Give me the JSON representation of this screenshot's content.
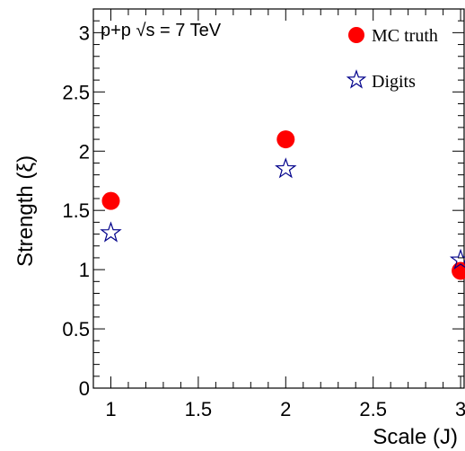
{
  "chart_data": {
    "type": "scatter",
    "xlabel": "Scale (J)",
    "ylabel": "Strength (ξ)",
    "annotation": "p+p √s = 7 TeV",
    "xlim": [
      0.9,
      3.02
    ],
    "ylim": [
      0,
      3.2
    ],
    "x_ticks": [
      "1",
      "1.5",
      "2",
      "2.5",
      "3"
    ],
    "y_ticks": [
      "0",
      "0.5",
      "1",
      "1.5",
      "2",
      "2.5",
      "3"
    ],
    "grid": false,
    "legend_position": "top-right",
    "series": [
      {
        "name": "MC truth",
        "marker": "filled-circle",
        "color": "#ff0000",
        "x": [
          1,
          2,
          3
        ],
        "y": [
          1.58,
          2.1,
          0.99
        ]
      },
      {
        "name": "Digits",
        "marker": "open-star",
        "color": "#00008b",
        "x": [
          1,
          2,
          3
        ],
        "y": [
          1.31,
          1.85,
          1.08
        ]
      }
    ]
  }
}
